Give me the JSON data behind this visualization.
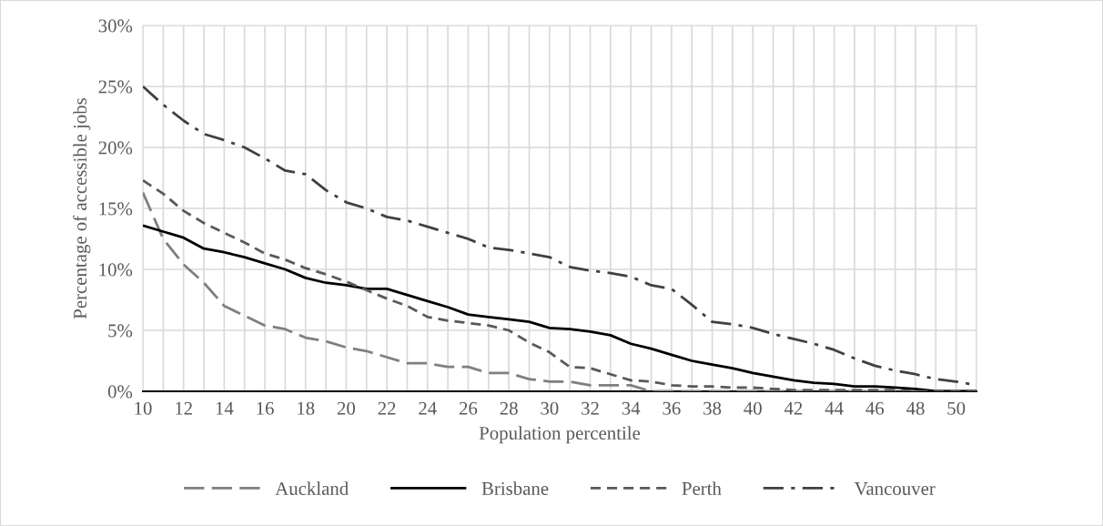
{
  "chart_data": {
    "type": "line",
    "xlabel": "Population percentile",
    "ylabel": "Percentage of accessible jobs",
    "categories": [
      "10",
      null,
      "12",
      null,
      "14",
      null,
      "16",
      null,
      "18",
      null,
      "20",
      null,
      "22",
      null,
      "24",
      null,
      "26",
      null,
      "28",
      null,
      "30",
      null,
      "32",
      null,
      "34",
      null,
      "36",
      null,
      "38",
      null,
      "40",
      null,
      "42",
      null,
      "44",
      null,
      "46",
      null,
      "48",
      null,
      "50",
      null
    ],
    "series": [
      {
        "name": "Auckland",
        "color": "#7f7f7f",
        "line_style": "long_dash",
        "values": [
          16.3,
          12.5,
          10.4,
          8.9,
          7.0,
          6.2,
          5.4,
          5.1,
          4.4,
          4.1,
          3.6,
          3.3,
          2.8,
          2.3,
          2.3,
          2.0,
          2.0,
          1.5,
          1.5,
          1.0,
          0.8,
          0.8,
          0.5,
          0.5,
          0.5,
          0.0,
          0.0,
          0.0,
          0.0,
          0.0,
          0.0,
          0.0,
          0.0,
          0.0,
          0.0,
          0.0,
          0.0,
          0.0,
          0.0,
          0.0,
          0.0,
          0.0
        ]
      },
      {
        "name": "Brisbane",
        "color": "#000000",
        "line_style": "solid",
        "values": [
          13.6,
          13.1,
          12.6,
          11.7,
          11.4,
          11.0,
          10.5,
          10.0,
          9.3,
          8.9,
          8.7,
          8.4,
          8.4,
          7.9,
          7.4,
          6.9,
          6.3,
          6.1,
          5.9,
          5.7,
          5.2,
          5.1,
          4.9,
          4.6,
          3.9,
          3.5,
          3.0,
          2.5,
          2.2,
          1.9,
          1.5,
          1.2,
          0.9,
          0.7,
          0.6,
          0.4,
          0.4,
          0.3,
          0.2,
          0.0,
          0.0,
          0.0
        ]
      },
      {
        "name": "Perth",
        "color": "#595959",
        "line_style": "dashed",
        "values": [
          17.3,
          16.2,
          14.8,
          13.8,
          13.0,
          12.2,
          11.3,
          10.8,
          10.1,
          9.6,
          9.0,
          8.3,
          7.6,
          7.0,
          6.1,
          5.8,
          5.6,
          5.4,
          5.0,
          4.0,
          3.2,
          2.0,
          1.9,
          1.4,
          0.9,
          0.8,
          0.5,
          0.4,
          0.4,
          0.3,
          0.3,
          0.2,
          0.1,
          0.1,
          0.1,
          0.1,
          0.1,
          0.1,
          0.0,
          0.0,
          0.0,
          0.0
        ]
      },
      {
        "name": "Vancouver",
        "color": "#404040",
        "line_style": "dash_dot",
        "values": [
          25.0,
          23.5,
          22.2,
          21.1,
          20.6,
          20.0,
          19.1,
          18.1,
          17.8,
          16.5,
          15.5,
          15.0,
          14.3,
          14.0,
          13.5,
          13.0,
          12.5,
          11.8,
          11.6,
          11.3,
          11.0,
          10.2,
          9.9,
          9.7,
          9.4,
          8.7,
          8.4,
          7.1,
          5.7,
          5.5,
          5.2,
          4.7,
          4.3,
          3.9,
          3.4,
          2.7,
          2.1,
          1.7,
          1.4,
          1.0,
          0.8,
          0.5
        ]
      }
    ],
    "ylim": [
      0,
      30
    ],
    "yticks": [
      {
        "value": 0,
        "label": "0%"
      },
      {
        "value": 5,
        "label": "5%"
      },
      {
        "value": 10,
        "label": "10%"
      },
      {
        "value": 15,
        "label": "15%"
      },
      {
        "value": 20,
        "label": "20%"
      },
      {
        "value": 25,
        "label": "25%"
      },
      {
        "value": 30,
        "label": "30%"
      }
    ],
    "grid": true,
    "legend": "bottom"
  }
}
